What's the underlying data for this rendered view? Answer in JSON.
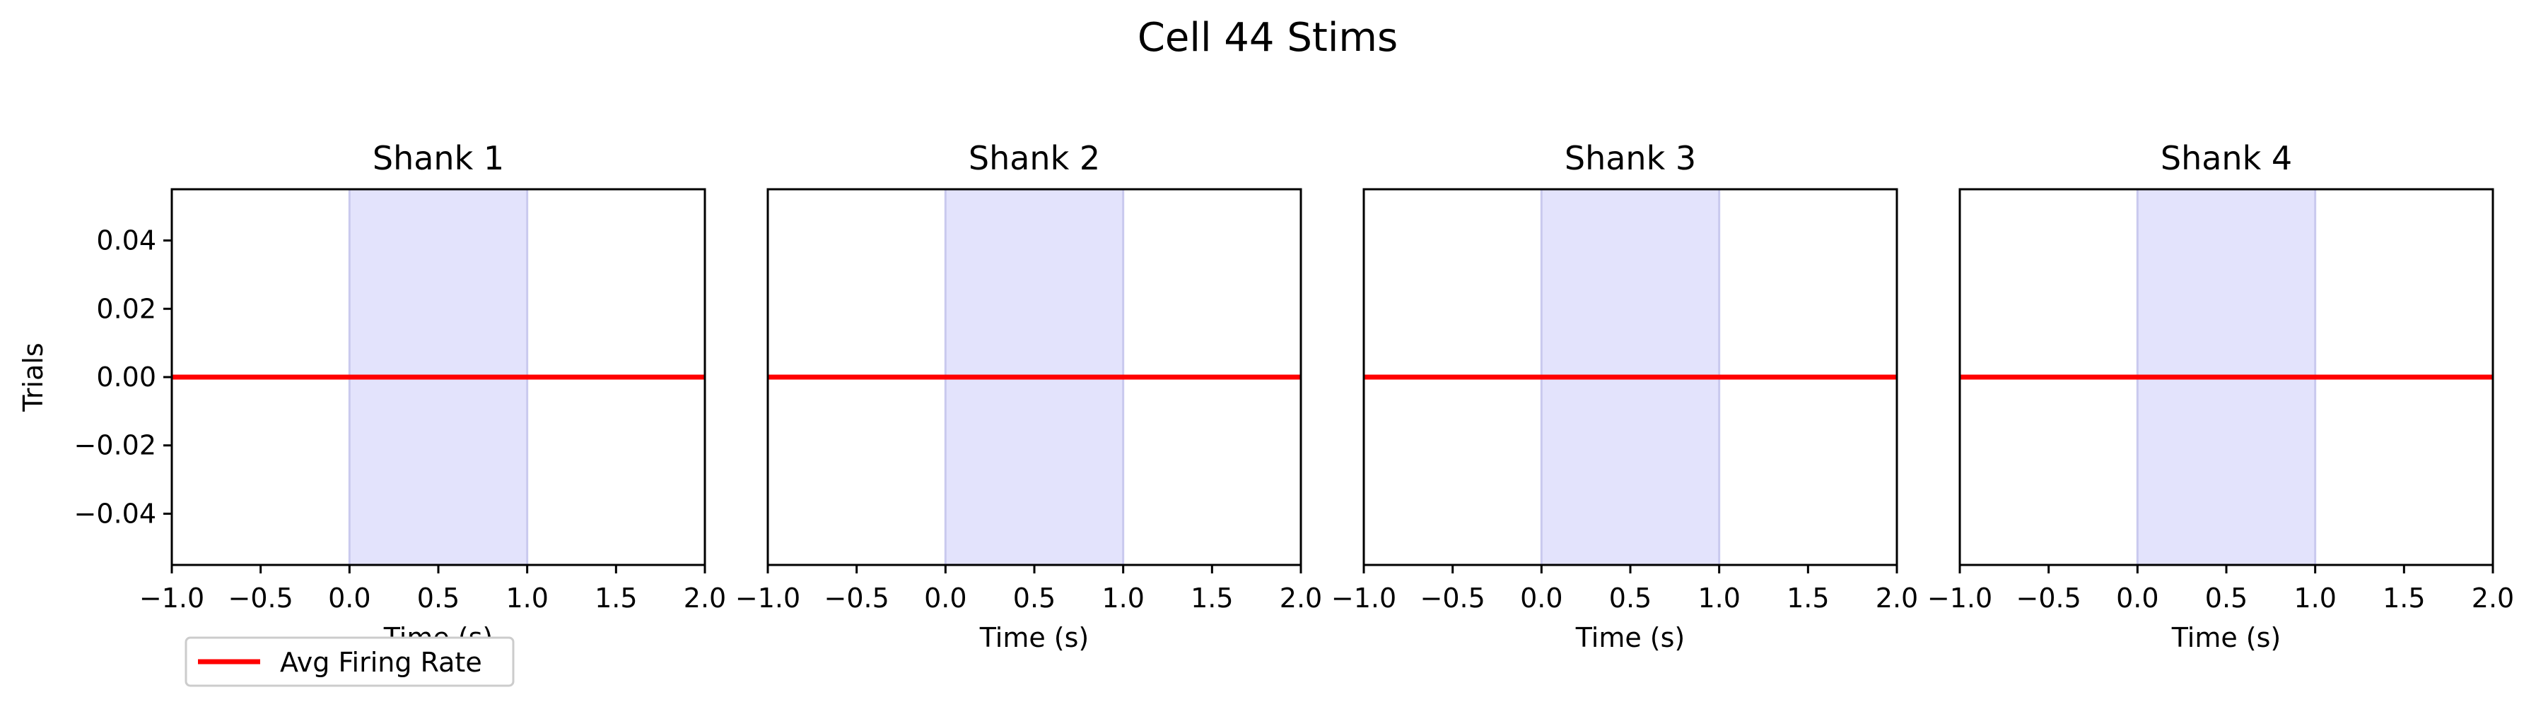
{
  "figure": {
    "title": "Cell 44 Stims"
  },
  "legend": {
    "label": "Avg Firing Rate",
    "color": "#ff0000"
  },
  "colors": {
    "line": "#ff0000",
    "stim_fill": "#e3e3fc",
    "stim_edge": "#c9c9ee",
    "axes": "#000000"
  },
  "chart_data": [
    {
      "type": "line",
      "title": "Shank 1",
      "xlabel": "Time (s)",
      "ylabel": "Trials",
      "xlim": [
        -1.0,
        2.0
      ],
      "ylim": [
        -0.055,
        0.055
      ],
      "xticks": [
        "−1.0",
        "−0.5",
        "0.0",
        "0.5",
        "1.0",
        "1.5",
        "2.0"
      ],
      "yticks": [
        "0.04",
        "0.02",
        "0.00",
        "−0.02",
        "−0.04"
      ],
      "shaded_region": [
        0.0,
        1.0
      ],
      "series": [
        {
          "name": "Avg Firing Rate",
          "x": [
            -1.0,
            2.0
          ],
          "y": [
            0.0,
            0.0
          ]
        }
      ]
    },
    {
      "type": "line",
      "title": "Shank 2",
      "xlabel": "Time (s)",
      "xlim": [
        -1.0,
        2.0
      ],
      "ylim": [
        -0.055,
        0.055
      ],
      "xticks": [
        "−1.0",
        "−0.5",
        "0.0",
        "0.5",
        "1.0",
        "1.5",
        "2.0"
      ],
      "shaded_region": [
        0.0,
        1.0
      ],
      "series": [
        {
          "name": "Avg Firing Rate",
          "x": [
            -1.0,
            2.0
          ],
          "y": [
            0.0,
            0.0
          ]
        }
      ]
    },
    {
      "type": "line",
      "title": "Shank 3",
      "xlabel": "Time (s)",
      "xlim": [
        -1.0,
        2.0
      ],
      "ylim": [
        -0.055,
        0.055
      ],
      "xticks": [
        "−1.0",
        "−0.5",
        "0.0",
        "0.5",
        "1.0",
        "1.5",
        "2.0"
      ],
      "shaded_region": [
        0.0,
        1.0
      ],
      "series": [
        {
          "name": "Avg Firing Rate",
          "x": [
            -1.0,
            2.0
          ],
          "y": [
            0.0,
            0.0
          ]
        }
      ]
    },
    {
      "type": "line",
      "title": "Shank 4",
      "xlabel": "Time (s)",
      "xlim": [
        -1.0,
        2.0
      ],
      "ylim": [
        -0.055,
        0.055
      ],
      "xticks": [
        "−1.0",
        "−0.5",
        "0.0",
        "0.5",
        "1.0",
        "1.5",
        "2.0"
      ],
      "shaded_region": [
        0.0,
        1.0
      ],
      "series": [
        {
          "name": "Avg Firing Rate",
          "x": [
            -1.0,
            2.0
          ],
          "y": [
            0.0,
            0.0
          ]
        }
      ]
    }
  ]
}
